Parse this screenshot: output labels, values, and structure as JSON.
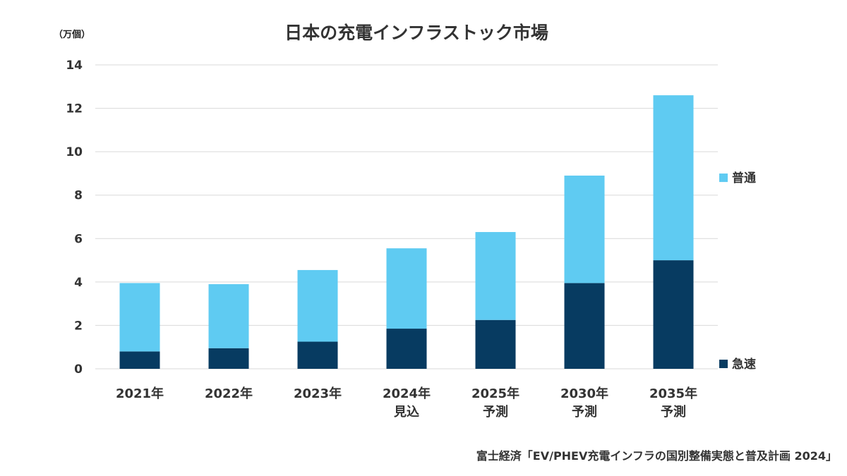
{
  "chart_data": {
    "type": "bar",
    "stacked": true,
    "title": "日本の充電インフラストック市場",
    "unit_label": "（万個）",
    "categories": [
      [
        "2021年"
      ],
      [
        "2022年"
      ],
      [
        "2023年"
      ],
      [
        "2024年",
        "見込"
      ],
      [
        "2025年",
        "予測"
      ],
      [
        "2030年",
        "予測"
      ],
      [
        "2035年",
        "予測"
      ]
    ],
    "series": [
      {
        "name": "急速",
        "color": "#073b61",
        "values": [
          0.8,
          0.95,
          1.25,
          1.85,
          2.25,
          3.95,
          5.0
        ]
      },
      {
        "name": "普通",
        "color": "#5fcbf2",
        "values": [
          3.15,
          2.95,
          3.3,
          3.7,
          4.05,
          4.95,
          7.6
        ]
      }
    ],
    "ylim": [
      0,
      14
    ],
    "yticks": [
      0,
      2,
      4,
      6,
      8,
      10,
      12,
      14
    ],
    "grid": true,
    "legend_position": "right",
    "source": "富士経済「EV/PHEV充電インフラの国別整備実態と普及計画 2024」"
  }
}
